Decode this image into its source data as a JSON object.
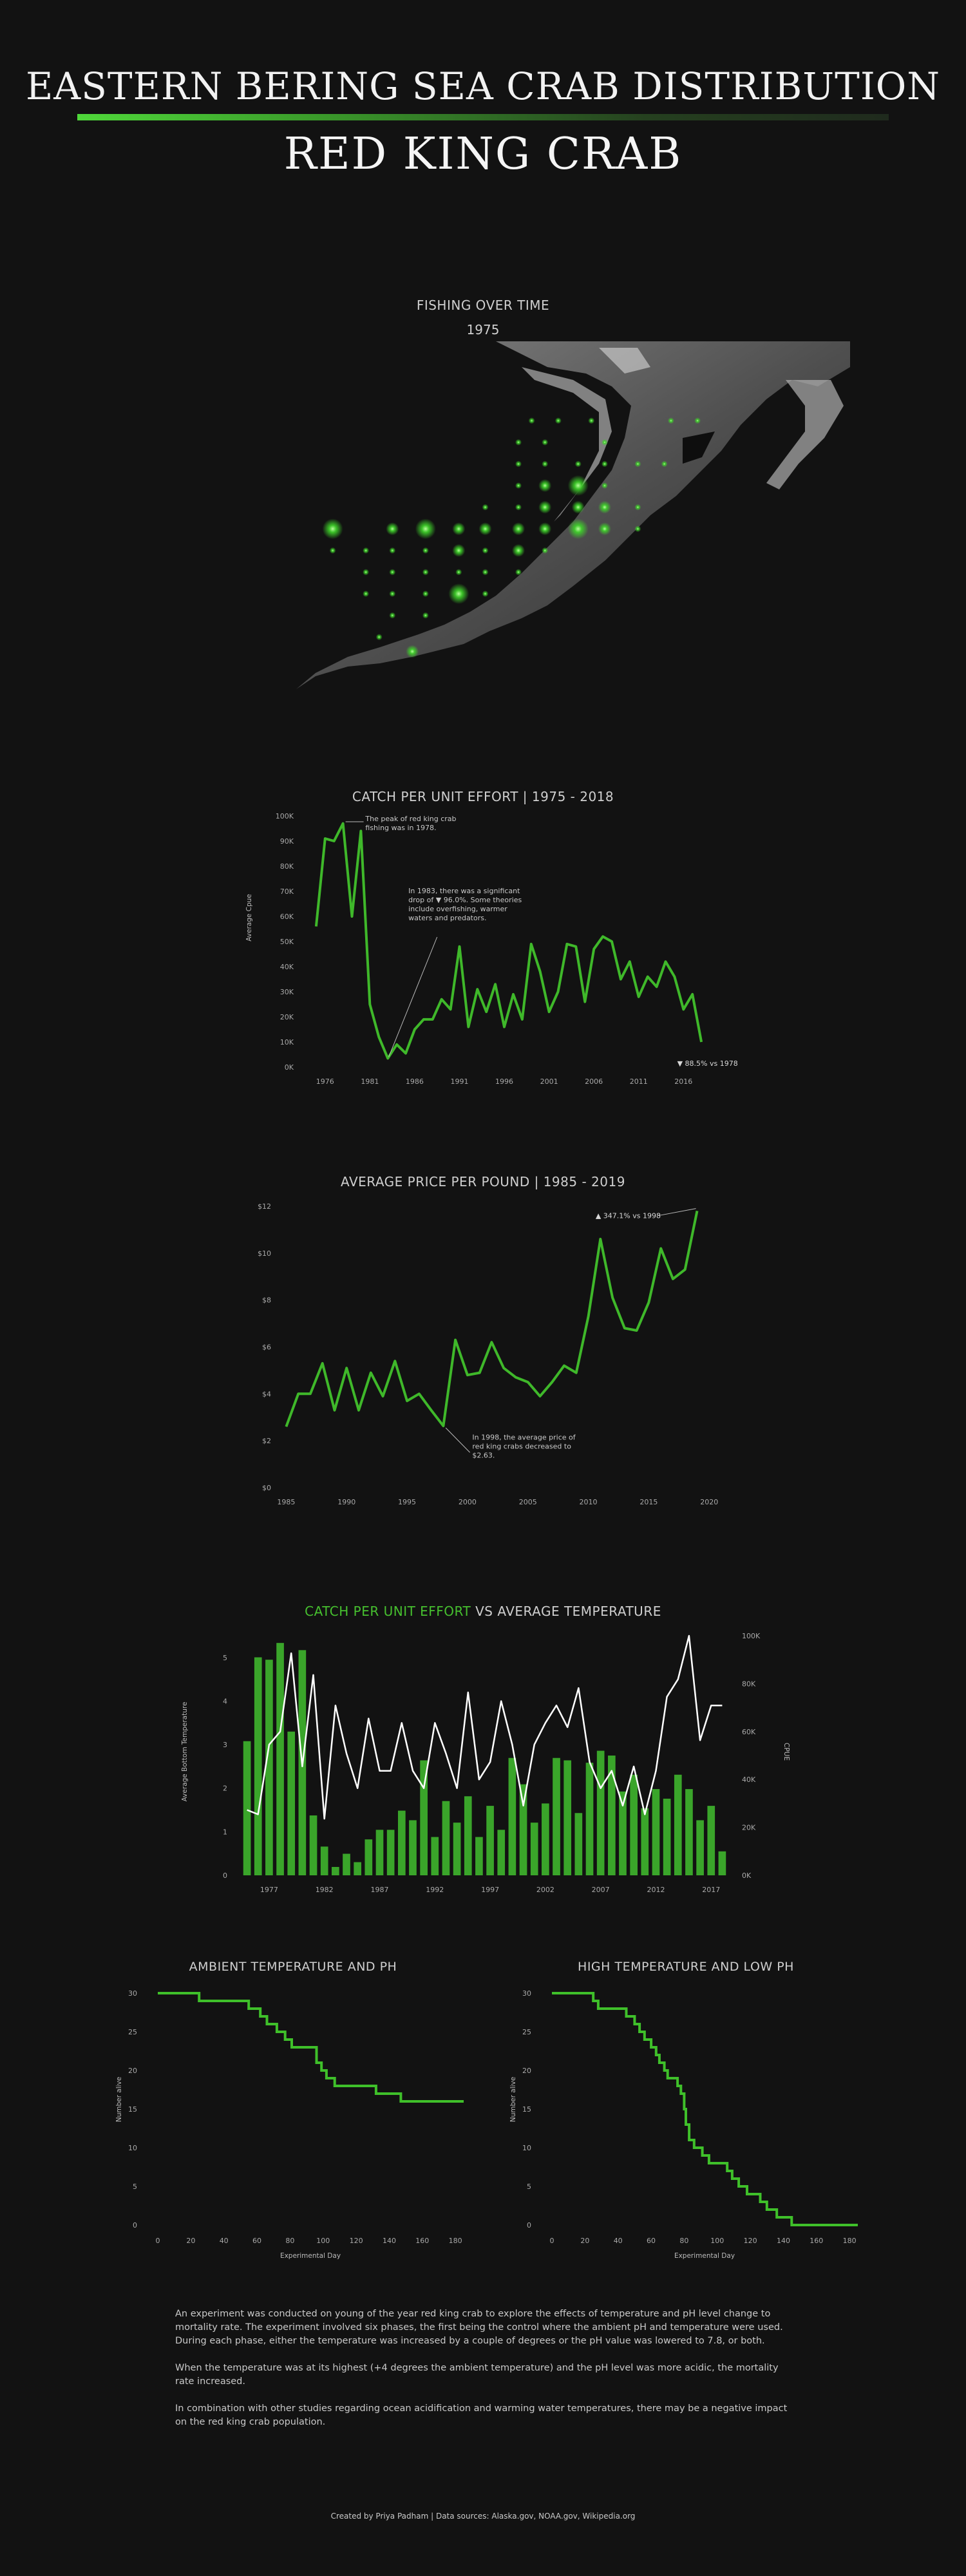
{
  "header": {
    "title": "EASTERN BERING SEA CRAB DISTRIBUTION",
    "subtitle": "RED KING CRAB"
  },
  "map": {
    "title": "FISHING OVER TIME",
    "year": "1975",
    "marker_color": "#3fd42a",
    "stations": [
      {
        "lon": 0.52,
        "lat": 0.22,
        "size": 1
      },
      {
        "lon": 0.56,
        "lat": 0.22,
        "size": 1
      },
      {
        "lon": 0.61,
        "lat": 0.22,
        "size": 1
      },
      {
        "lon": 0.73,
        "lat": 0.22,
        "size": 1
      },
      {
        "lon": 0.77,
        "lat": 0.22,
        "size": 1
      },
      {
        "lon": 0.5,
        "lat": 0.28,
        "size": 1
      },
      {
        "lon": 0.54,
        "lat": 0.28,
        "size": 1
      },
      {
        "lon": 0.63,
        "lat": 0.28,
        "size": 1
      },
      {
        "lon": 0.5,
        "lat": 0.34,
        "size": 1
      },
      {
        "lon": 0.54,
        "lat": 0.34,
        "size": 1
      },
      {
        "lon": 0.59,
        "lat": 0.34,
        "size": 1
      },
      {
        "lon": 0.63,
        "lat": 0.34,
        "size": 1
      },
      {
        "lon": 0.68,
        "lat": 0.34,
        "size": 1
      },
      {
        "lon": 0.72,
        "lat": 0.34,
        "size": 1
      },
      {
        "lon": 0.5,
        "lat": 0.4,
        "size": 1
      },
      {
        "lon": 0.54,
        "lat": 0.4,
        "size": 2
      },
      {
        "lon": 0.59,
        "lat": 0.4,
        "size": 3
      },
      {
        "lon": 0.63,
        "lat": 0.4,
        "size": 1
      },
      {
        "lon": 0.45,
        "lat": 0.46,
        "size": 1
      },
      {
        "lon": 0.5,
        "lat": 0.46,
        "size": 1
      },
      {
        "lon": 0.54,
        "lat": 0.46,
        "size": 2
      },
      {
        "lon": 0.59,
        "lat": 0.46,
        "size": 2
      },
      {
        "lon": 0.63,
        "lat": 0.46,
        "size": 2
      },
      {
        "lon": 0.68,
        "lat": 0.46,
        "size": 1
      },
      {
        "lon": 0.22,
        "lat": 0.52,
        "size": 3
      },
      {
        "lon": 0.31,
        "lat": 0.52,
        "size": 2
      },
      {
        "lon": 0.36,
        "lat": 0.52,
        "size": 3
      },
      {
        "lon": 0.41,
        "lat": 0.52,
        "size": 2
      },
      {
        "lon": 0.45,
        "lat": 0.52,
        "size": 2
      },
      {
        "lon": 0.5,
        "lat": 0.52,
        "size": 2
      },
      {
        "lon": 0.54,
        "lat": 0.52,
        "size": 2
      },
      {
        "lon": 0.59,
        "lat": 0.52,
        "size": 3
      },
      {
        "lon": 0.63,
        "lat": 0.52,
        "size": 2
      },
      {
        "lon": 0.68,
        "lat": 0.52,
        "size": 1
      },
      {
        "lon": 0.22,
        "lat": 0.58,
        "size": 1
      },
      {
        "lon": 0.27,
        "lat": 0.58,
        "size": 1
      },
      {
        "lon": 0.31,
        "lat": 0.58,
        "size": 1
      },
      {
        "lon": 0.36,
        "lat": 0.58,
        "size": 1
      },
      {
        "lon": 0.41,
        "lat": 0.58,
        "size": 2
      },
      {
        "lon": 0.45,
        "lat": 0.58,
        "size": 1
      },
      {
        "lon": 0.5,
        "lat": 0.58,
        "size": 2
      },
      {
        "lon": 0.54,
        "lat": 0.58,
        "size": 1
      },
      {
        "lon": 0.27,
        "lat": 0.64,
        "size": 1
      },
      {
        "lon": 0.31,
        "lat": 0.64,
        "size": 1
      },
      {
        "lon": 0.36,
        "lat": 0.64,
        "size": 1
      },
      {
        "lon": 0.41,
        "lat": 0.64,
        "size": 1
      },
      {
        "lon": 0.45,
        "lat": 0.64,
        "size": 1
      },
      {
        "lon": 0.5,
        "lat": 0.64,
        "size": 1
      },
      {
        "lon": 0.27,
        "lat": 0.7,
        "size": 1
      },
      {
        "lon": 0.31,
        "lat": 0.7,
        "size": 1
      },
      {
        "lon": 0.36,
        "lat": 0.7,
        "size": 1
      },
      {
        "lon": 0.41,
        "lat": 0.7,
        "size": 3
      },
      {
        "lon": 0.45,
        "lat": 0.7,
        "size": 1
      },
      {
        "lon": 0.31,
        "lat": 0.76,
        "size": 1
      },
      {
        "lon": 0.36,
        "lat": 0.76,
        "size": 1
      },
      {
        "lon": 0.29,
        "lat": 0.82,
        "size": 1
      },
      {
        "lon": 0.34,
        "lat": 0.86,
        "size": 2
      }
    ]
  },
  "chart_data": [
    {
      "type": "line",
      "title": "CATCH PER UNIT EFFORT | 1975 - 2018",
      "xlabel": "",
      "ylabel": "Average Cpue",
      "x": [
        1975,
        1976,
        1977,
        1978,
        1979,
        1980,
        1981,
        1982,
        1983,
        1984,
        1985,
        1986,
        1987,
        1988,
        1989,
        1990,
        1991,
        1992,
        1993,
        1994,
        1995,
        1996,
        1997,
        1998,
        1999,
        2000,
        2001,
        2002,
        2003,
        2004,
        2005,
        2006,
        2007,
        2008,
        2009,
        2010,
        2011,
        2012,
        2013,
        2014,
        2015,
        2016,
        2017,
        2018
      ],
      "y": [
        56000,
        91000,
        90000,
        97000,
        60000,
        94000,
        25000,
        12000,
        3500,
        9000,
        5500,
        15000,
        19000,
        19000,
        27000,
        23000,
        48000,
        16000,
        31000,
        22000,
        33000,
        16000,
        29000,
        19000,
        49000,
        38000,
        22000,
        30000,
        49000,
        48000,
        26000,
        47000,
        52000,
        50000,
        35000,
        42000,
        28000,
        36000,
        32000,
        42000,
        36000,
        23000,
        29000,
        10000
      ],
      "yticks": [
        "0K",
        "10K",
        "20K",
        "30K",
        "40K",
        "50K",
        "60K",
        "70K",
        "80K",
        "90K",
        "100K"
      ],
      "xticks": [
        1976,
        1981,
        1986,
        1991,
        1996,
        2001,
        2006,
        2011,
        2016
      ],
      "ylim": [
        0,
        100000
      ],
      "color": "#3fb82a",
      "annotations": [
        {
          "text": [
            "The peak of red king crab",
            "fishing was in 1978."
          ]
        },
        {
          "text": [
            "In 1983, there was a significant",
            "drop of ▼ 96.0%. Some theories",
            "include overfishing, warmer",
            "waters and predators."
          ]
        },
        {
          "text": [
            "▼ 88.5% vs 1978"
          ]
        }
      ],
      "grid": false
    },
    {
      "type": "line",
      "title": "AVERAGE PRICE PER POUND | 1985 - 2019",
      "xlabel": "",
      "ylabel": "",
      "x": [
        1985,
        1986,
        1987,
        1988,
        1989,
        1990,
        1991,
        1992,
        1993,
        1994,
        1995,
        1996,
        1997,
        1998,
        1999,
        2000,
        2001,
        2002,
        2003,
        2004,
        2005,
        2006,
        2007,
        2008,
        2009,
        2010,
        2011,
        2012,
        2013,
        2014,
        2015,
        2016,
        2017,
        2018,
        2019
      ],
      "y": [
        2.6,
        4.0,
        4.0,
        5.3,
        3.3,
        5.1,
        3.3,
        4.9,
        3.9,
        5.4,
        3.7,
        4.0,
        3.3,
        2.63,
        6.3,
        4.8,
        4.9,
        6.2,
        5.1,
        4.7,
        4.5,
        3.9,
        4.5,
        5.2,
        4.9,
        7.3,
        10.6,
        8.1,
        6.8,
        6.7,
        7.9,
        10.2,
        8.9,
        9.3,
        11.8
      ],
      "yticks": [
        "$0",
        "$2",
        "$4",
        "$6",
        "$8",
        "$10",
        "$12"
      ],
      "xticks": [
        1985,
        1990,
        1995,
        2000,
        2005,
        2010,
        2015,
        2020
      ],
      "ylim": [
        0,
        12
      ],
      "color": "#3fb82a",
      "annotations": [
        {
          "text": [
            "▲ 347.1% vs 1998"
          ]
        },
        {
          "text": [
            "In 1998, the average price of",
            "red king crabs decreased to",
            "$2.63."
          ]
        }
      ],
      "grid": false
    },
    {
      "type": "bar",
      "title_parts": [
        "CATCH PER UNIT EFFORT",
        " VS ",
        "AVERAGE TEMPERATURE"
      ],
      "xlabel": "",
      "ylabel_left": "Average Bottom Temperature",
      "ylabel_right": "CPUE",
      "x": [
        1975,
        1976,
        1977,
        1978,
        1979,
        1980,
        1981,
        1982,
        1983,
        1984,
        1985,
        1986,
        1987,
        1988,
        1989,
        1990,
        1991,
        1992,
        1993,
        1994,
        1995,
        1996,
        1997,
        1998,
        1999,
        2000,
        2001,
        2002,
        2003,
        2004,
        2005,
        2006,
        2007,
        2008,
        2009,
        2010,
        2011,
        2012,
        2013,
        2014,
        2015,
        2016,
        2017,
        2018
      ],
      "series": [
        {
          "kind": "bar",
          "axis": "right",
          "color": "#3aa52a",
          "values": [
            56000,
            91000,
            90000,
            97000,
            60000,
            94000,
            25000,
            12000,
            3500,
            9000,
            5500,
            15000,
            19000,
            19000,
            27000,
            23000,
            48000,
            16000,
            31000,
            22000,
            33000,
            16000,
            29000,
            19000,
            49000,
            38000,
            22000,
            30000,
            49000,
            48000,
            26000,
            47000,
            52000,
            50000,
            35000,
            42000,
            28000,
            36000,
            32000,
            42000,
            36000,
            23000,
            29000,
            10000
          ]
        },
        {
          "kind": "line",
          "axis": "left",
          "color": "#ffffff",
          "values": [
            1.5,
            1.4,
            3.0,
            3.3,
            5.1,
            2.5,
            4.6,
            1.3,
            3.9,
            2.8,
            2.0,
            3.6,
            2.4,
            2.4,
            3.5,
            2.4,
            2.0,
            3.5,
            2.8,
            2.0,
            4.2,
            2.2,
            2.6,
            4.0,
            3.0,
            1.6,
            3.0,
            3.5,
            3.9,
            3.4,
            4.3,
            2.6,
            2.0,
            2.4,
            1.6,
            2.5,
            1.4,
            2.4,
            4.1,
            4.5,
            5.5,
            3.1,
            3.9,
            3.9
          ]
        }
      ],
      "yticks_left": [
        "0",
        "1",
        "2",
        "3",
        "4",
        "5"
      ],
      "yticks_right": [
        "0K",
        "20K",
        "40K",
        "60K",
        "80K",
        "100K"
      ],
      "xticks": [
        1977,
        1982,
        1987,
        1992,
        1997,
        2002,
        2007,
        2012,
        2017
      ],
      "ylim_left": [
        0,
        5.5
      ],
      "ylim_right": [
        0,
        100000
      ],
      "grid": false
    },
    {
      "type": "line",
      "title": "AMBIENT TEMPERATURE AND PH",
      "xlabel": "Experimental Day",
      "ylabel": "Number alive",
      "step": true,
      "color": "#3fc02a",
      "points": [
        [
          0,
          30
        ],
        [
          25,
          30
        ],
        [
          25,
          29
        ],
        [
          55,
          29
        ],
        [
          55,
          28
        ],
        [
          62,
          28
        ],
        [
          62,
          27
        ],
        [
          66,
          27
        ],
        [
          66,
          26
        ],
        [
          72,
          26
        ],
        [
          72,
          25
        ],
        [
          77,
          25
        ],
        [
          77,
          24
        ],
        [
          81,
          24
        ],
        [
          81,
          23
        ],
        [
          96,
          23
        ],
        [
          96,
          21
        ],
        [
          99,
          21
        ],
        [
          99,
          20
        ],
        [
          102,
          20
        ],
        [
          102,
          19
        ],
        [
          107,
          19
        ],
        [
          107,
          18
        ],
        [
          132,
          18
        ],
        [
          132,
          17
        ],
        [
          147,
          17
        ],
        [
          147,
          16
        ],
        [
          185,
          16
        ]
      ],
      "xticks": [
        0,
        20,
        40,
        60,
        80,
        100,
        120,
        140,
        160,
        180
      ],
      "yticks": [
        0,
        5,
        10,
        15,
        20,
        25,
        30
      ],
      "xlim": [
        0,
        185
      ],
      "ylim": [
        0,
        30
      ],
      "grid": false
    },
    {
      "type": "line",
      "title": "HIGH TEMPERATURE AND LOW PH",
      "xlabel": "Experimental Day",
      "ylabel": "Number alive",
      "step": true,
      "color": "#3fc02a",
      "points": [
        [
          0,
          30
        ],
        [
          25,
          30
        ],
        [
          25,
          29
        ],
        [
          28,
          29
        ],
        [
          28,
          28
        ],
        [
          45,
          28
        ],
        [
          45,
          27
        ],
        [
          50,
          27
        ],
        [
          50,
          26
        ],
        [
          53,
          26
        ],
        [
          53,
          25
        ],
        [
          56,
          25
        ],
        [
          56,
          24
        ],
        [
          60,
          24
        ],
        [
          60,
          23
        ],
        [
          63,
          23
        ],
        [
          63,
          22
        ],
        [
          65,
          22
        ],
        [
          65,
          21
        ],
        [
          68,
          21
        ],
        [
          68,
          20
        ],
        [
          70,
          20
        ],
        [
          70,
          19
        ],
        [
          76,
          19
        ],
        [
          76,
          18
        ],
        [
          78,
          18
        ],
        [
          78,
          17
        ],
        [
          80,
          17
        ],
        [
          80,
          15
        ],
        [
          81,
          15
        ],
        [
          81,
          13
        ],
        [
          83,
          13
        ],
        [
          83,
          11
        ],
        [
          86,
          11
        ],
        [
          86,
          10
        ],
        [
          91,
          10
        ],
        [
          91,
          9
        ],
        [
          95,
          9
        ],
        [
          95,
          8
        ],
        [
          106,
          8
        ],
        [
          106,
          7
        ],
        [
          109,
          7
        ],
        [
          109,
          6
        ],
        [
          113,
          6
        ],
        [
          113,
          5
        ],
        [
          118,
          5
        ],
        [
          118,
          4
        ],
        [
          126,
          4
        ],
        [
          126,
          3
        ],
        [
          130,
          3
        ],
        [
          130,
          2
        ],
        [
          136,
          2
        ],
        [
          136,
          1
        ],
        [
          145,
          1
        ],
        [
          145,
          0
        ],
        [
          185,
          0
        ]
      ],
      "xticks": [
        0,
        20,
        40,
        60,
        80,
        100,
        120,
        140,
        160,
        180
      ],
      "yticks": [
        0,
        5,
        10,
        15,
        20,
        25,
        30
      ],
      "xlim": [
        0,
        185
      ],
      "ylim": [
        0,
        30
      ],
      "grid": false
    }
  ],
  "text": {
    "p1": "An experiment was conducted on young of the year red king crab to explore the effects of temperature and pH level change to mortality rate. The experiment involved six phases, the first being the control where the ambient pH and temperature were used. During each phase, either the temperature was increased by a couple of degrees or the pH value was lowered to 7.8, or both.",
    "p2": "When the temperature was at its highest (+4 degrees the ambient temperature) and the pH level was more acidic, the mortality rate increased.",
    "p3": "In combination with other studies regarding ocean acidification and warming water temperatures, there may be a negative impact on the red king crab population."
  },
  "footer": {
    "credits": "Created by Priya Padham | Data sources: Alaska.gov, NOAA.gov, Wikipedia.org"
  }
}
